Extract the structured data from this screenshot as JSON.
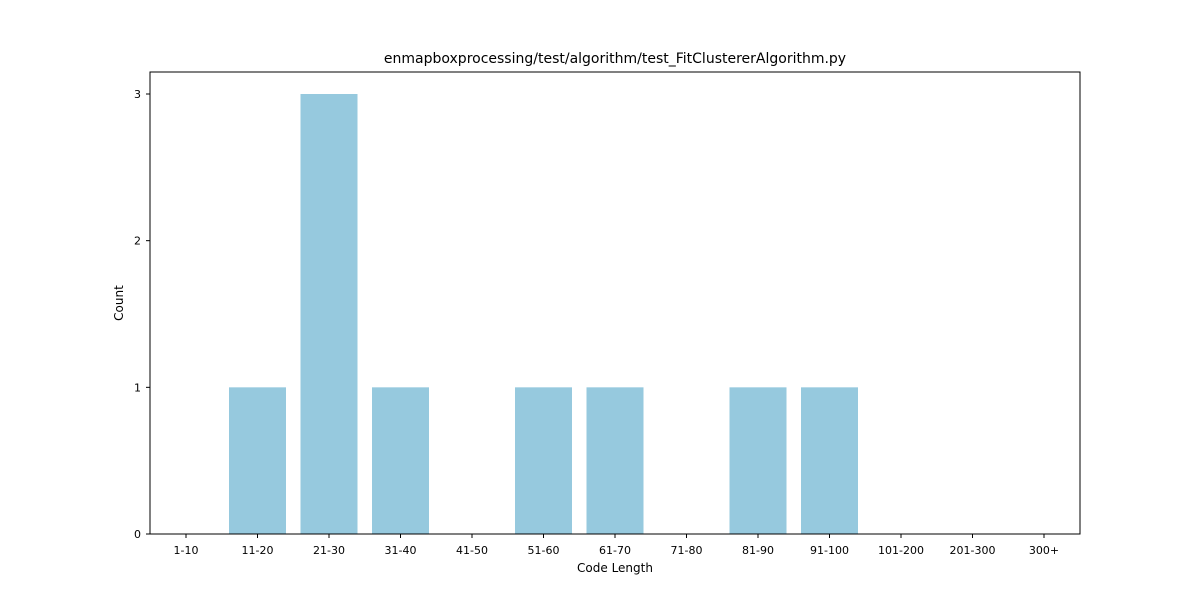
{
  "chart_data": {
    "type": "bar",
    "title": "enmapboxprocessing/test/algorithm/test_FitClustererAlgorithm.py",
    "xlabel": "Code Length",
    "ylabel": "Count",
    "categories": [
      "1-10",
      "11-20",
      "21-30",
      "31-40",
      "41-50",
      "51-60",
      "61-70",
      "71-80",
      "81-90",
      "91-100",
      "101-200",
      "201-300",
      "300+"
    ],
    "values": [
      0,
      1,
      3,
      1,
      0,
      1,
      1,
      0,
      1,
      1,
      0,
      0,
      0
    ],
    "ylim": [
      0,
      3.15
    ],
    "yticks": [
      0,
      1,
      2,
      3
    ],
    "bar_color": "#96c9de",
    "grid": false,
    "legend": "none"
  }
}
